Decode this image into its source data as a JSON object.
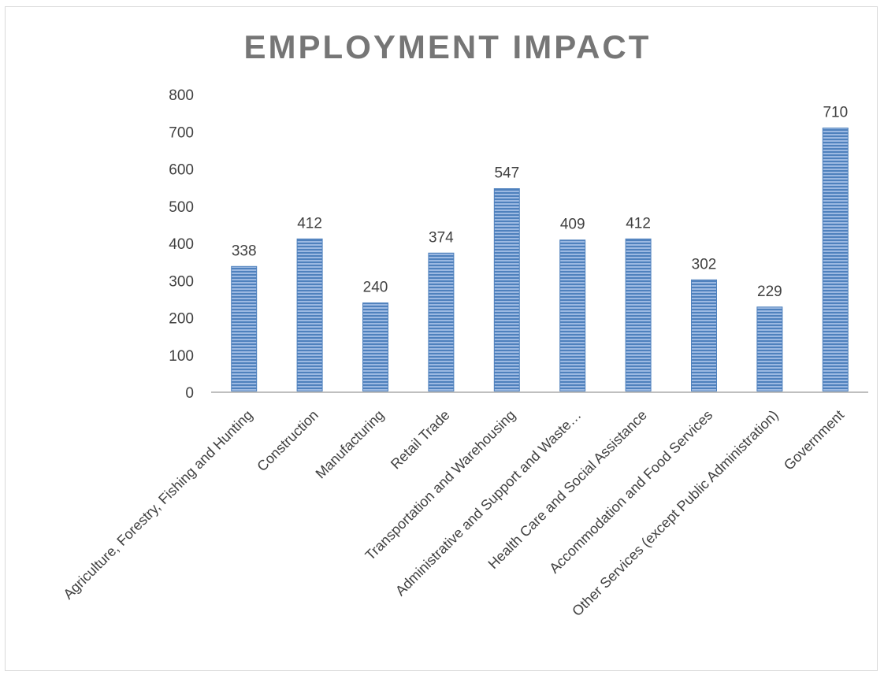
{
  "chart_data": {
    "type": "bar",
    "title": "EMPLOYMENT IMPACT",
    "xlabel": "",
    "ylabel": "",
    "ylim": [
      0,
      800
    ],
    "yticks": [
      0,
      100,
      200,
      300,
      400,
      500,
      600,
      700,
      800
    ],
    "grid": false,
    "legend": "none",
    "categories": [
      "Agriculture, Forestry, Fishing and Hunting",
      "Construction",
      "Manufacturing",
      "Retail Trade",
      "Transportation and Warehousing",
      "Administrative and Support and Waste…",
      "Health Care and Social Assistance",
      "Accommodation and Food Services",
      "Other Services (except Public Administration)",
      "Government"
    ],
    "values": [
      338,
      412,
      240,
      374,
      547,
      409,
      412,
      302,
      229,
      710
    ],
    "data_labels": [
      "338",
      "412",
      "240",
      "374",
      "547",
      "409",
      "412",
      "302",
      "229",
      "710"
    ],
    "bar_color": "#4f81bd",
    "bar_stripe_color": "#9cb9e2"
  }
}
